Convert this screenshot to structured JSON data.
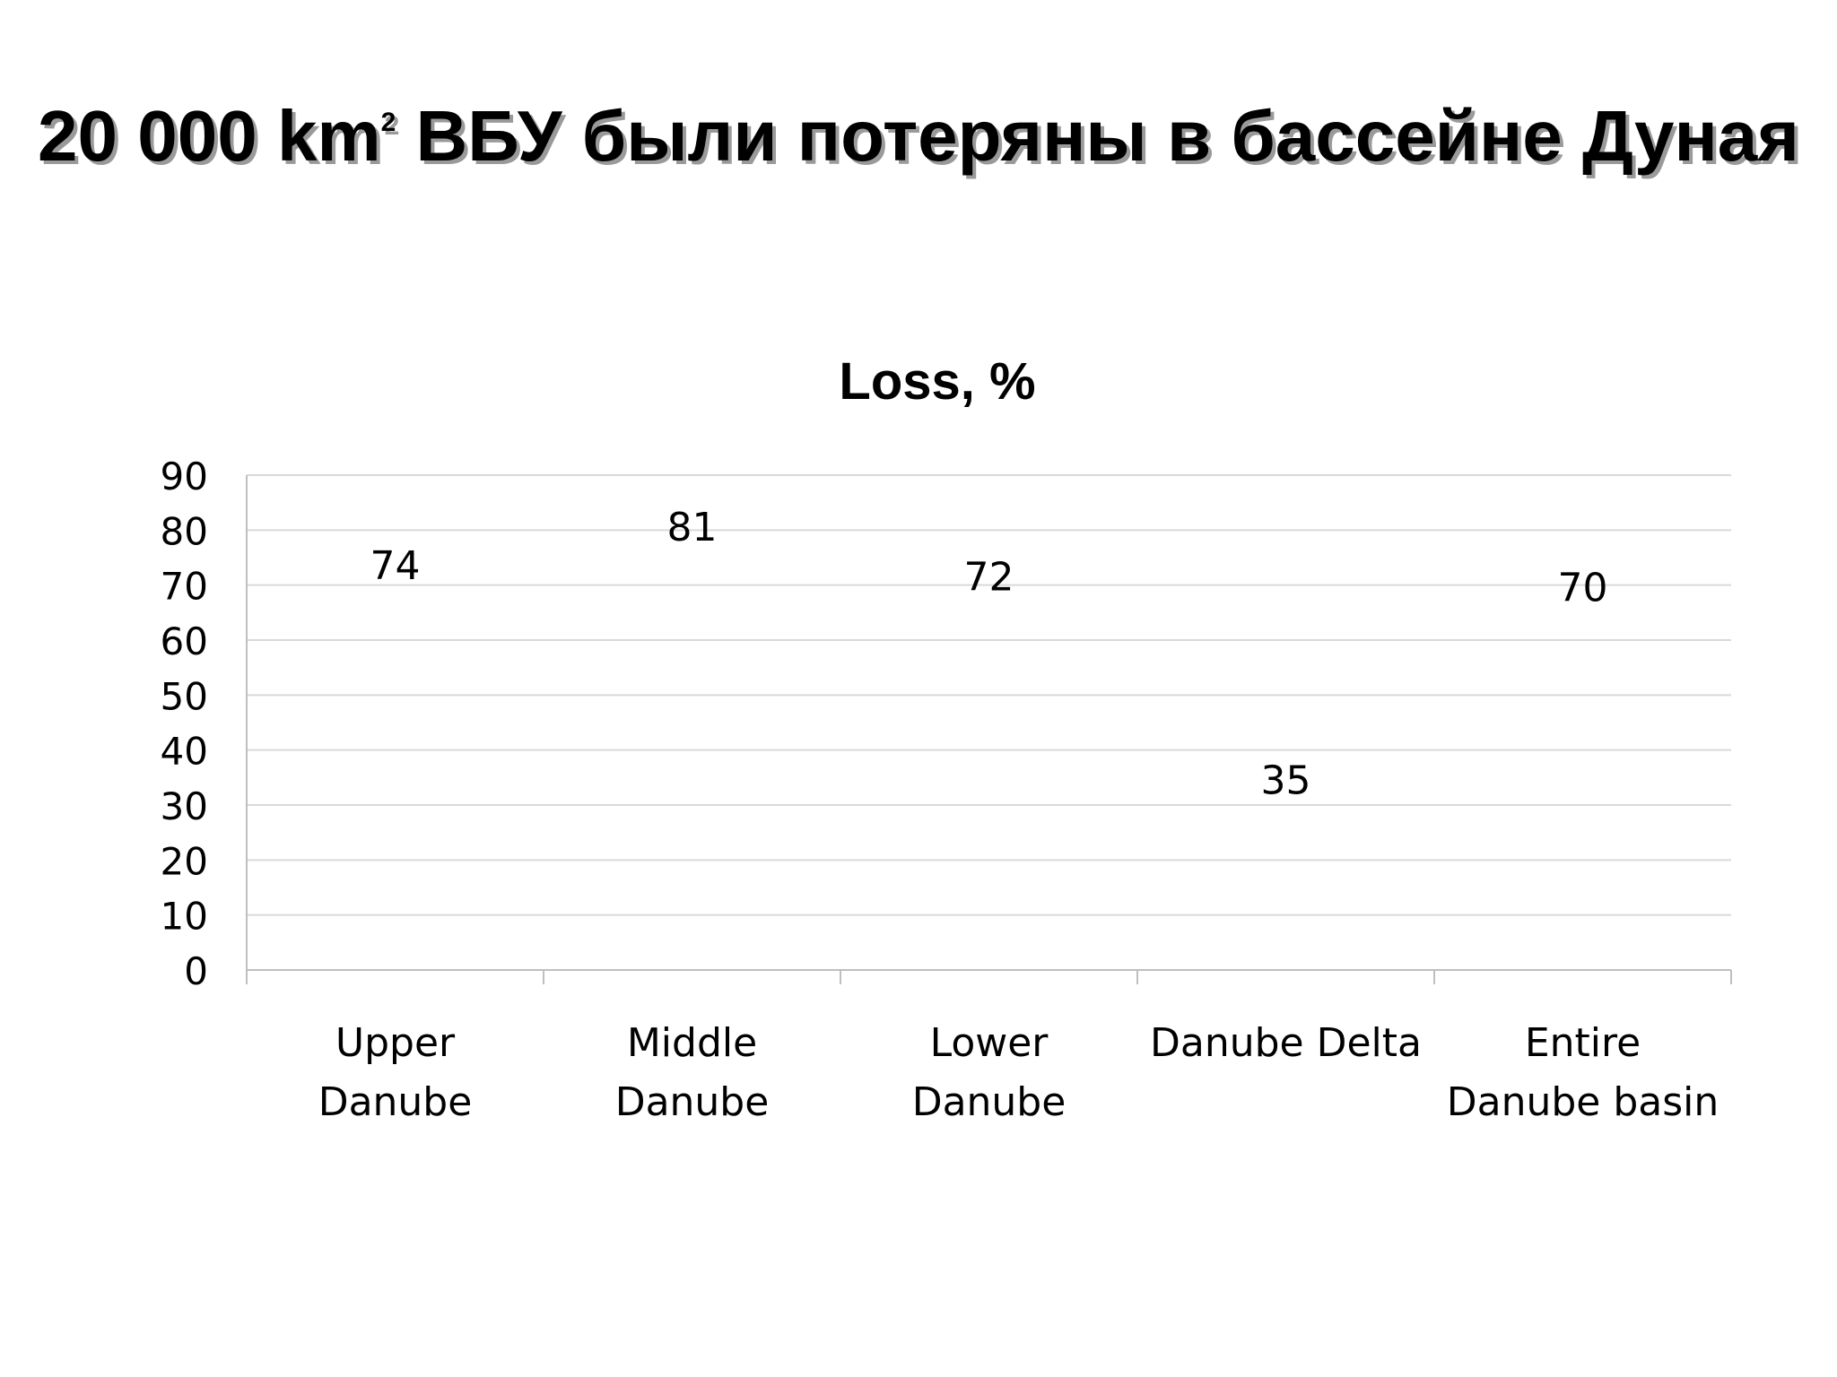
{
  "slide": {
    "title_prefix": "20 000 km",
    "title_sup": "2",
    "title_suffix": " ВБУ были потеряны в бассейне Дуная"
  },
  "chart_data": {
    "type": "line",
    "title": "Loss, %",
    "categories": [
      [
        "Upper",
        "Danube"
      ],
      [
        "Middle",
        "Danube"
      ],
      [
        "Lower",
        "Danube"
      ],
      [
        "Danube Delta"
      ],
      [
        "Entire",
        "Danube basin"
      ]
    ],
    "values": [
      74,
      81,
      72,
      35,
      70
    ],
    "data_labels": [
      "74",
      "81",
      "72",
      "35",
      "70"
    ],
    "ylim": [
      0,
      90
    ],
    "yticks": [
      0,
      10,
      20,
      30,
      40,
      50,
      60,
      70,
      80,
      90
    ],
    "grid": true,
    "legend": "none",
    "colors": {
      "grid": "#d9d9d9",
      "axis": "#bfbfbf",
      "text": "#000000"
    }
  }
}
